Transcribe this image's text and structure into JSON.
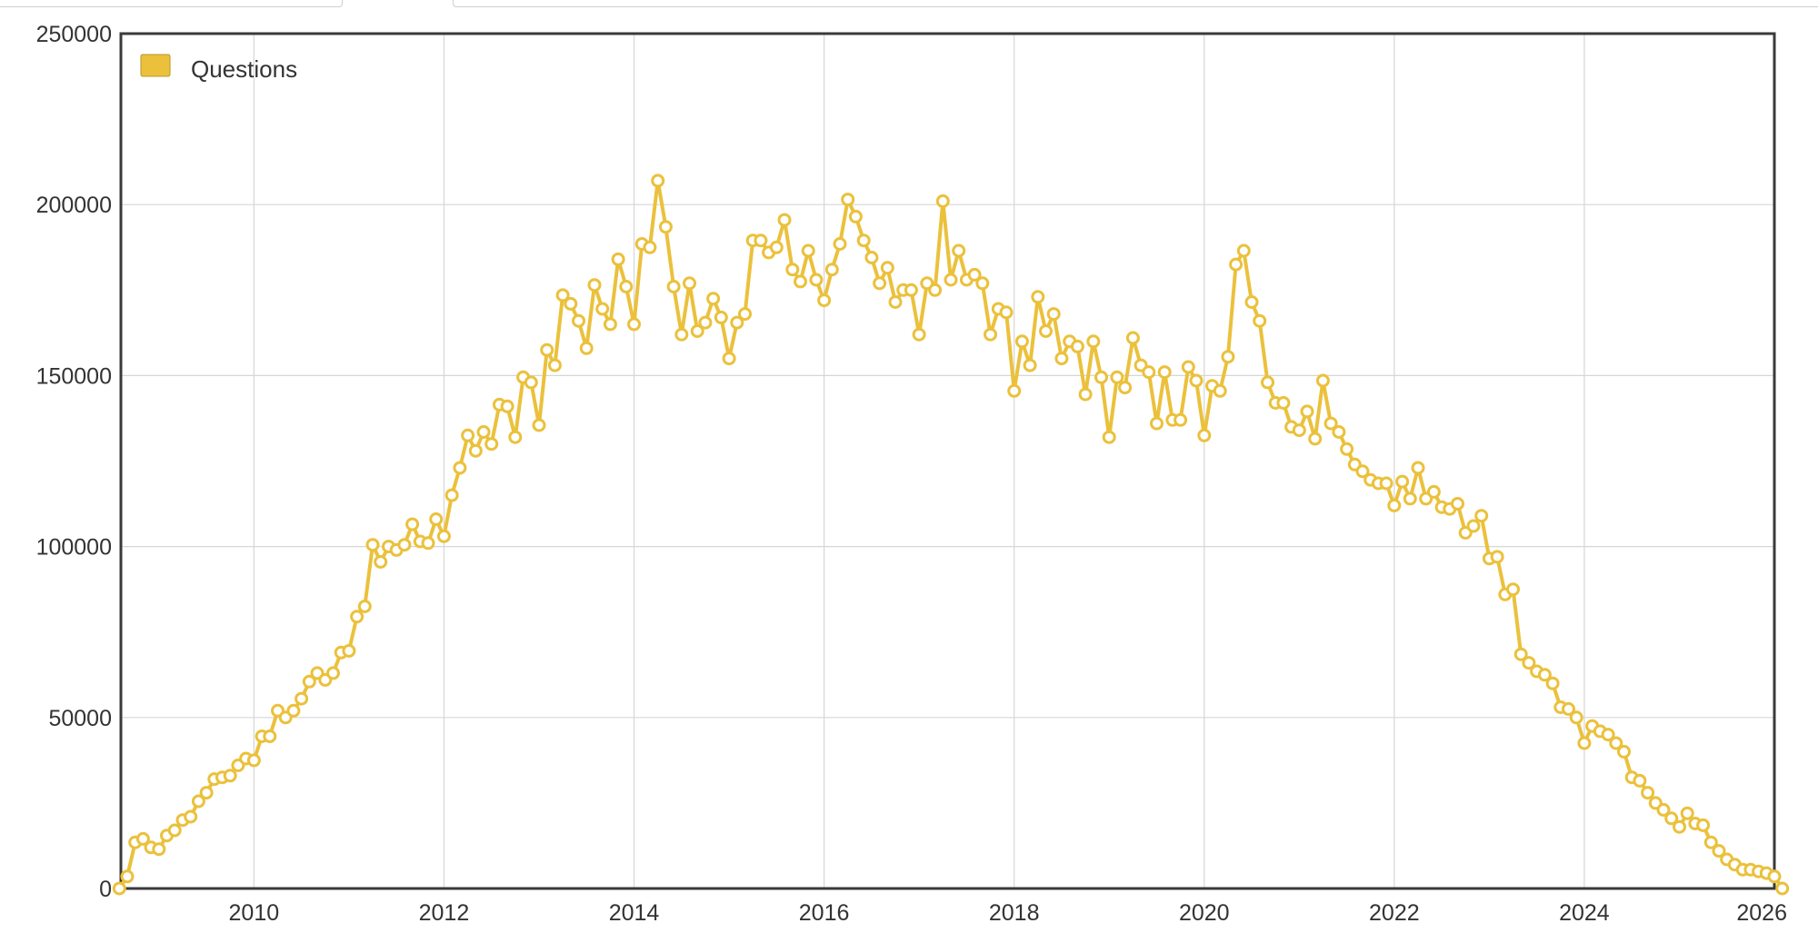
{
  "chart_data": {
    "type": "line",
    "xlim": [
      2008.6,
      2026.0
    ],
    "ylim": [
      0,
      250000
    ],
    "x_ticks": [
      "2010",
      "2012",
      "2014",
      "2016",
      "2018",
      "2020",
      "2022",
      "2024",
      "2026"
    ],
    "y_ticks": [
      "0",
      "50000",
      "100000",
      "150000",
      "200000",
      "250000"
    ],
    "grid": true,
    "legend_position": "top-left",
    "series": [
      {
        "name": "Questions",
        "color": "#ebc13c",
        "start": [
          2008,
          8
        ],
        "interval": "month",
        "values": [
          0,
          3500,
          13500,
          14500,
          12000,
          11500,
          15500,
          17000,
          20000,
          21000,
          25500,
          28000,
          32000,
          32500,
          33000,
          36000,
          38000,
          37500,
          44500,
          44500,
          52000,
          50000,
          52000,
          55500,
          60500,
          63000,
          61000,
          63000,
          69000,
          69500,
          79500,
          82500,
          100500,
          95500,
          100000,
          99000,
          100500,
          106500,
          101500,
          101000,
          108000,
          103000,
          115000,
          123000,
          132500,
          128000,
          133500,
          130000,
          141500,
          141000,
          132000,
          149500,
          148000,
          135500,
          157500,
          153000,
          173500,
          171000,
          166000,
          158000,
          176500,
          169500,
          165000,
          184000,
          176000,
          165000,
          188500,
          187500,
          207000,
          193500,
          176000,
          162000,
          177000,
          163000,
          165500,
          172500,
          167000,
          155000,
          165500,
          168000,
          189500,
          189500,
          186000,
          187500,
          195500,
          181000,
          177500,
          186500,
          178000,
          172000,
          181000,
          188500,
          201500,
          196500,
          189500,
          184500,
          177000,
          181500,
          171500,
          175000,
          175000,
          162000,
          177000,
          175000,
          201000,
          178000,
          186500,
          178000,
          179500,
          177000,
          162000,
          169500,
          168500,
          145500,
          160000,
          153000,
          173000,
          163000,
          168000,
          155000,
          160000,
          158500,
          144500,
          160000,
          149500,
          132000,
          149500,
          146500,
          161000,
          153000,
          151000,
          136000,
          151000,
          137000,
          137000,
          152500,
          148500,
          132500,
          147000,
          145500,
          155500,
          182500,
          186500,
          171500,
          166000,
          148000,
          142000,
          142000,
          135000,
          134000,
          139500,
          131500,
          148500,
          136000,
          133500,
          128500,
          124000,
          122000,
          119500,
          118500,
          118500,
          112000,
          119000,
          114000,
          123000,
          114000,
          116000,
          111500,
          111000,
          112500,
          104000,
          106000,
          109000,
          96500,
          97000,
          86000,
          87500,
          68500,
          66000,
          63500,
          62500,
          60000,
          53000,
          52500,
          50000,
          42500,
          47500,
          46000,
          45000,
          42500,
          40000,
          32500,
          31500,
          28000,
          25000,
          23000,
          20500,
          18000,
          22000,
          19000,
          18500,
          13500,
          11000,
          8500,
          7000,
          5500,
          5500,
          5000,
          4500,
          3500,
          0
        ]
      }
    ]
  }
}
